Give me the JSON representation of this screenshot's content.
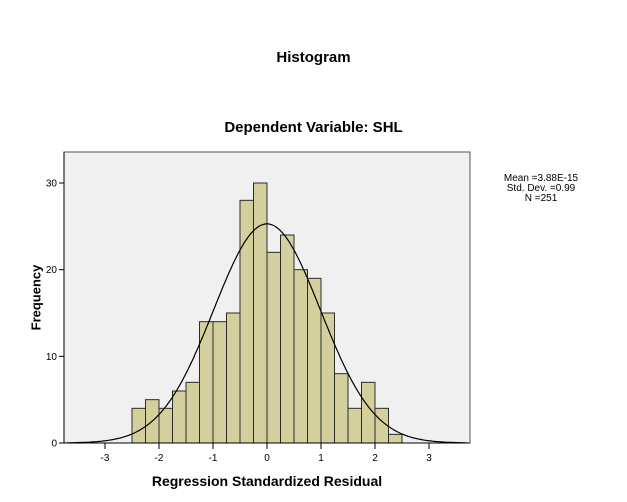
{
  "chart_data": {
    "type": "bar",
    "title": "Histogram",
    "subtitle": "Dependent Variable: SHL",
    "xlabel": "Regression Standardized Residual",
    "ylabel": "Frequency",
    "bin_width": 0.25,
    "bin_edges": [
      -2.5,
      -2.25,
      -2.0,
      -1.75,
      -1.5,
      -1.25,
      -1.0,
      -0.75,
      -0.5,
      -0.25,
      0.0,
      0.25,
      0.5,
      0.75,
      1.0,
      1.25,
      1.5,
      1.75,
      2.0,
      2.25,
      2.5
    ],
    "categories": [
      "-2.5–-2.25",
      "-2.25–-2.0",
      "-2.0–-1.75",
      "-1.75–-1.5",
      "-1.5–-1.25",
      "-1.25–-1.0",
      "-1.0–-0.75",
      "-0.75–-0.5",
      "-0.5–-0.25",
      "-0.25–0.0",
      "0.0–0.25",
      "0.25–0.5",
      "0.5–0.75",
      "0.75–1.0",
      "1.0–1.25",
      "1.25–1.5",
      "1.5–1.75",
      "1.75–2.0",
      "2.0–2.25",
      "2.25–2.5"
    ],
    "values": [
      4,
      5,
      4,
      6,
      7,
      14,
      14,
      15,
      28,
      30,
      22,
      24,
      20,
      19,
      15,
      8,
      4,
      7,
      4,
      1
    ],
    "overlay": {
      "type": "normal_curve",
      "mean": 0,
      "std": 0.99,
      "n": 251
    },
    "xlim": [
      -3.75,
      3.75
    ],
    "ylim": [
      0,
      30.5
    ],
    "xticks": [
      -3,
      -2,
      -1,
      0,
      1,
      2,
      3
    ],
    "yticks": [
      0,
      10,
      20,
      30
    ],
    "grid": false,
    "legend_position": "right",
    "colors": {
      "bar_fill": "#d4d09e",
      "bar_edge": "#2b2b2b",
      "plot_bg": "#f0f0f0",
      "curve": "#000000"
    }
  },
  "header": {
    "title": "Histogram",
    "subtitle": "Dependent Variable: SHL"
  },
  "axes": {
    "xlabel": "Regression Standardized Residual",
    "ylabel": "Frequency"
  },
  "stats": {
    "mean": "Mean =3.88E-15",
    "std": "Std. Dev. =0.99",
    "n": "N =251"
  }
}
